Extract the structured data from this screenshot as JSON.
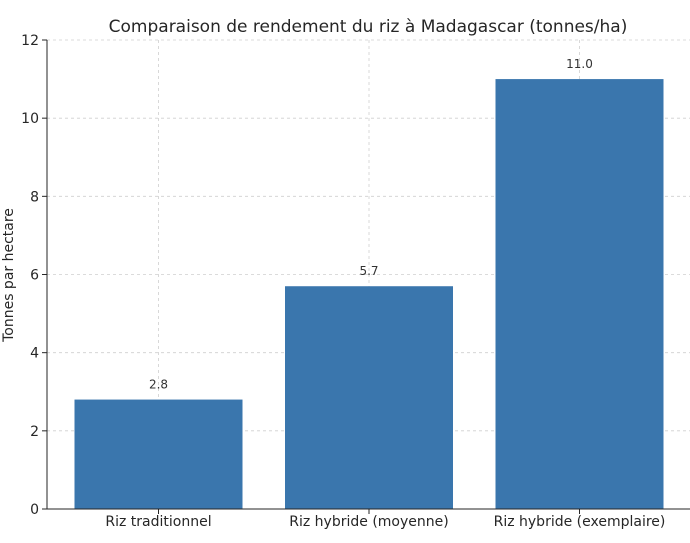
{
  "chart_data": {
    "type": "bar",
    "title": "Comparaison de rendement du riz à Madagascar (tonnes/ha)",
    "xlabel": "",
    "ylabel": "Tonnes par hectare",
    "categories": [
      "Riz traditionnel",
      "Riz hybride (moyenne)",
      "Riz hybride (exemplaire)"
    ],
    "values": [
      2.8,
      5.7,
      11.0
    ],
    "data_labels": [
      "2.8",
      "5.7",
      "11.0"
    ],
    "ylim": [
      0,
      12
    ],
    "yticks": [
      0,
      2,
      4,
      6,
      8,
      10,
      12
    ],
    "grid": true,
    "bar_color": "#3a76ad"
  }
}
